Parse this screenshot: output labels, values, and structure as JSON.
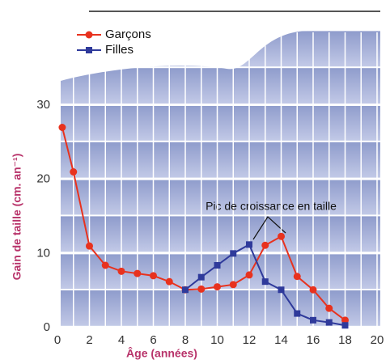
{
  "chart_data": {
    "type": "line",
    "xlabel": "Âge (années)",
    "ylabel": "Gain de taille (cm. an⁻¹)",
    "annotation": "Pic de croissance en taille",
    "xlim": [
      0,
      20
    ],
    "xticks": [
      0,
      2,
      4,
      6,
      8,
      10,
      12,
      14,
      16,
      18,
      20
    ],
    "ylim": [
      0,
      30
    ],
    "yticks": [
      0,
      10,
      20,
      30
    ],
    "grid": true,
    "legend": "upper left",
    "series": [
      {
        "name": "Garçons",
        "color": "#e8321e",
        "marker": "circle",
        "x": [
          0.3,
          1,
          2,
          3,
          4,
          5,
          6,
          7,
          8,
          9,
          10,
          11,
          12,
          13,
          14,
          15,
          16,
          17,
          18
        ],
        "values": [
          27,
          21,
          11,
          8.4,
          7.6,
          7.3,
          7,
          6.2,
          5.1,
          5.2,
          5.5,
          5.8,
          7.1,
          11.1,
          12.3,
          6.9,
          5.1,
          2.6,
          1
        ]
      },
      {
        "name": "Filles",
        "color": "#2f3a9b",
        "marker": "square",
        "x": [
          8,
          9,
          10,
          11,
          12,
          13,
          14,
          15,
          16,
          17,
          18
        ],
        "values": [
          5.1,
          6.8,
          8.4,
          10,
          11.2,
          6.2,
          5.1,
          1.9,
          1,
          0.7,
          0.3
        ]
      }
    ]
  }
}
